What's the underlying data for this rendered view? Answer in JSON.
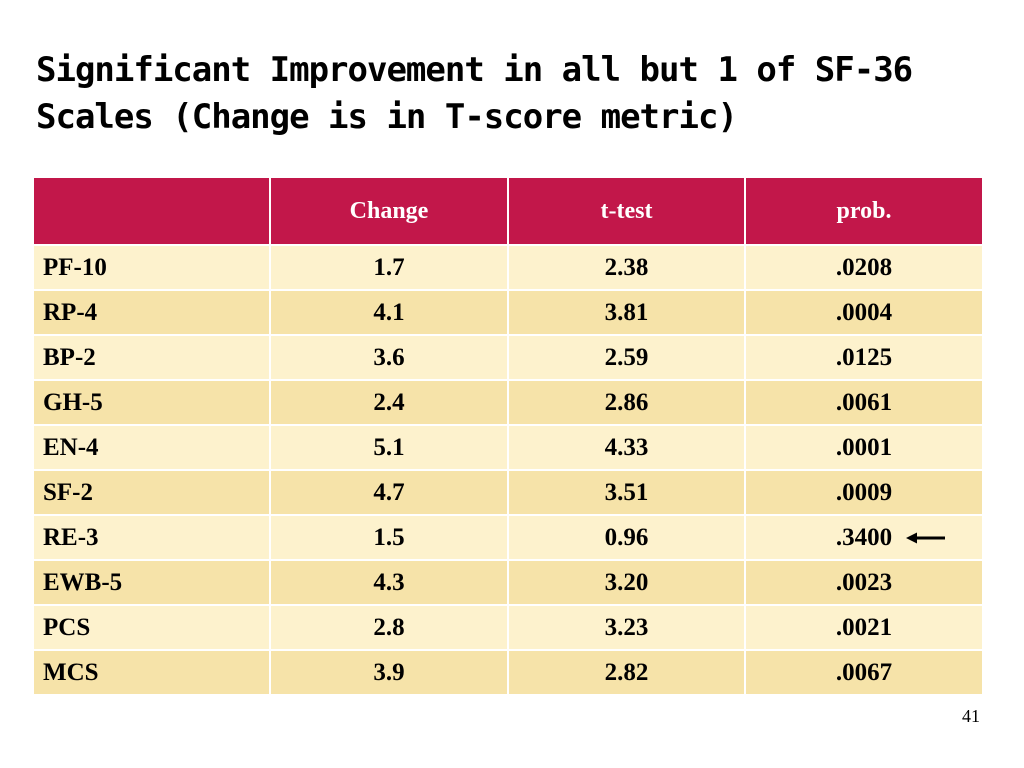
{
  "slide": {
    "title_line1": "Significant Improvement in all but 1 of SF-36",
    "title_line2": "Scales (Change is in T-score metric)",
    "page_number": "41"
  },
  "table": {
    "headers": [
      "",
      "Change",
      "t-test",
      "prob."
    ],
    "rows": [
      {
        "scale": "PF-10",
        "change": "1.7",
        "t_test": "2.38",
        "prob": ".0208"
      },
      {
        "scale": "RP-4",
        "change": "4.1",
        "t_test": "3.81",
        "prob": ".0004"
      },
      {
        "scale": "BP-2",
        "change": "3.6",
        "t_test": "2.59",
        "prob": ".0125"
      },
      {
        "scale": "GH-5",
        "change": "2.4",
        "t_test": "2.86",
        "prob": ".0061"
      },
      {
        "scale": "EN-4",
        "change": "5.1",
        "t_test": "4.33",
        "prob": ".0001"
      },
      {
        "scale": "SF-2",
        "change": "4.7",
        "t_test": "3.51",
        "prob": ".0009"
      },
      {
        "scale": "RE-3",
        "change": "1.5",
        "t_test": "0.96",
        "prob": ".3400",
        "highlighted": true
      },
      {
        "scale": "EWB-5",
        "change": "4.3",
        "t_test": "3.20",
        "prob": ".0023"
      },
      {
        "scale": "PCS",
        "change": "2.8",
        "t_test": "3.23",
        "prob": ".0021"
      },
      {
        "scale": "MCS",
        "change": "3.9",
        "t_test": "2.82",
        "prob": ".0067"
      }
    ]
  },
  "colors": {
    "header_bg": "#c2174a",
    "row_light": "#fdf2cd",
    "row_dark": "#f6e3a9",
    "arrow": "#000000"
  },
  "icons": {
    "highlight_marker": "left-arrow-icon"
  }
}
